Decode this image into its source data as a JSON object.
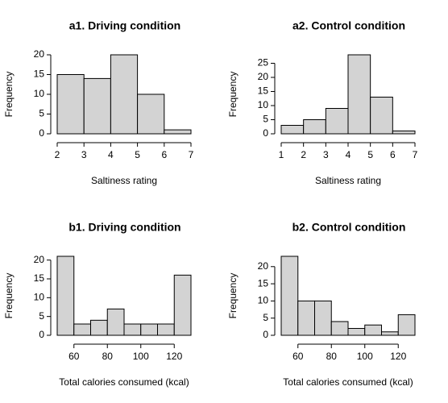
{
  "chart_data": [
    {
      "type": "histogram",
      "title": "a1. Driving condition",
      "xlabel": "Saltiness rating",
      "ylabel": "Frequency",
      "bins": [
        2,
        3,
        4,
        5,
        6,
        7
      ],
      "values": [
        15,
        14,
        20,
        10,
        1
      ],
      "color": "#d3d3d3",
      "xlim": [
        2,
        7
      ],
      "xticks": [
        2,
        3,
        4,
        5,
        6,
        7
      ],
      "ylim": [
        0,
        20
      ],
      "yticks": [
        0,
        5,
        10,
        15,
        20
      ]
    },
    {
      "type": "histogram",
      "title": "a2. Control condition",
      "xlabel": "Saltiness rating",
      "ylabel": "Frequency",
      "bins": [
        1,
        2,
        3,
        4,
        5,
        6,
        7
      ],
      "values": [
        3,
        5,
        9,
        28,
        13,
        1
      ],
      "color": "#d3d3d3",
      "xlim": [
        1,
        7
      ],
      "xticks": [
        1,
        2,
        3,
        4,
        5,
        6,
        7
      ],
      "ylim": [
        0,
        28
      ],
      "yticks": [
        0,
        5,
        10,
        15,
        20,
        25
      ]
    },
    {
      "type": "histogram",
      "title": "b1. Driving condition",
      "xlabel": "Total calories consumed (kcal)",
      "ylabel": "Frequency",
      "bins": [
        50,
        60,
        70,
        80,
        90,
        100,
        110,
        120,
        130
      ],
      "values": [
        21,
        3,
        4,
        7,
        3,
        3,
        3,
        16
      ],
      "color": "#d3d3d3",
      "xlim": [
        50,
        130
      ],
      "xticks": [
        60,
        80,
        100,
        120
      ],
      "ylim": [
        0,
        21
      ],
      "yticks": [
        0,
        5,
        10,
        15,
        20
      ]
    },
    {
      "type": "histogram",
      "title": "b2. Control condition",
      "xlabel": "Total calories consumed (kcal)",
      "ylabel": "Frequency",
      "bins": [
        50,
        60,
        70,
        80,
        90,
        100,
        110,
        120,
        130
      ],
      "values": [
        23,
        10,
        10,
        4,
        2,
        3,
        1,
        6
      ],
      "color": "#d3d3d3",
      "xlim": [
        50,
        130
      ],
      "xticks": [
        60,
        80,
        100,
        120
      ],
      "ylim": [
        0,
        23
      ],
      "yticks": [
        0,
        5,
        10,
        15,
        20
      ]
    }
  ]
}
